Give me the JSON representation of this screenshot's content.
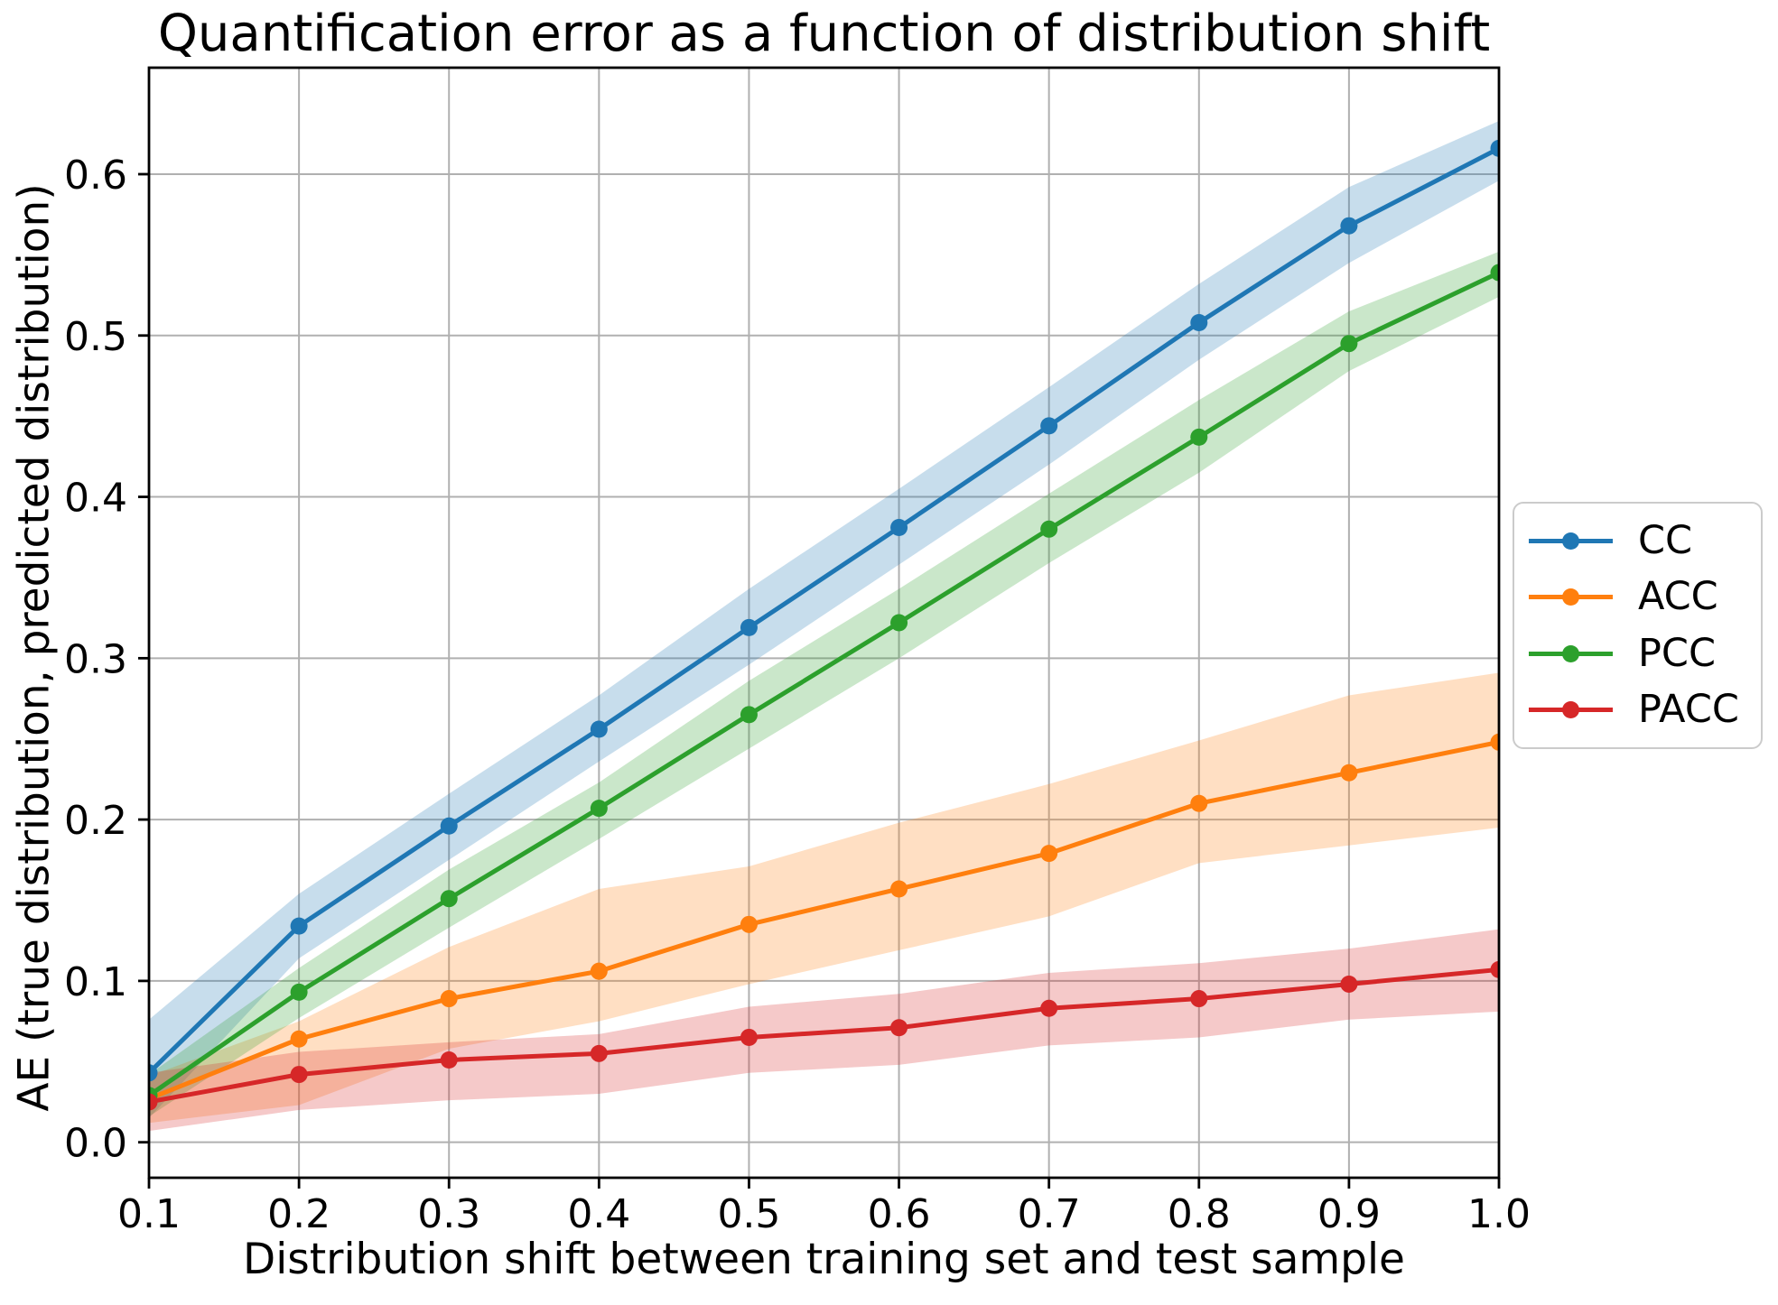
{
  "figure": {
    "background_color": "#ffffff",
    "grid_color": "#b0b0b0",
    "spine_color": "#000000",
    "text_color": "#000000",
    "legend_border_color": "#cbcbcb"
  },
  "chart_data": {
    "type": "line",
    "title": "Quantification error as a function of distribution shift",
    "xlabel": "Distribution shift between training set and test sample",
    "ylabel": "AE (true distribution, predicted distribution)",
    "x": [
      0.1,
      0.2,
      0.3,
      0.4,
      0.5,
      0.6,
      0.7,
      0.8,
      0.9,
      1.0
    ],
    "x_tick_labels": [
      "0.1",
      "0.2",
      "0.3",
      "0.4",
      "0.5",
      "0.6",
      "0.7",
      "0.8",
      "0.9",
      "1.0"
    ],
    "y_ticks": [
      0.0,
      0.1,
      0.2,
      0.3,
      0.4,
      0.5,
      0.6
    ],
    "y_tick_labels": [
      "0.0",
      "0.1",
      "0.2",
      "0.3",
      "0.4",
      "0.5",
      "0.6"
    ],
    "xlim": [
      0.1,
      1.0
    ],
    "ylim": [
      -0.022,
      0.666
    ],
    "grid": true,
    "legend_position": "outside-center-right",
    "band_opacity": 0.25,
    "series": [
      {
        "name": "CC",
        "color": "#1f77b4",
        "values": [
          0.043,
          0.134,
          0.196,
          0.256,
          0.319,
          0.381,
          0.444,
          0.508,
          0.568,
          0.616
        ],
        "band_lower": [
          0.015,
          0.114,
          0.175,
          0.236,
          0.296,
          0.358,
          0.42,
          0.485,
          0.545,
          0.596
        ],
        "band_upper": [
          0.076,
          0.154,
          0.216,
          0.277,
          0.343,
          0.405,
          0.468,
          0.532,
          0.592,
          0.633
        ]
      },
      {
        "name": "ACC",
        "color": "#ff7f0e",
        "values": [
          0.027,
          0.064,
          0.089,
          0.106,
          0.135,
          0.157,
          0.179,
          0.21,
          0.229,
          0.248
        ],
        "band_lower": [
          0.012,
          0.023,
          0.058,
          0.075,
          0.098,
          0.119,
          0.14,
          0.173,
          0.184,
          0.195
        ],
        "band_upper": [
          0.041,
          0.075,
          0.121,
          0.157,
          0.171,
          0.198,
          0.222,
          0.249,
          0.277,
          0.291
        ]
      },
      {
        "name": "PCC",
        "color": "#2ca02c",
        "values": [
          0.029,
          0.093,
          0.151,
          0.207,
          0.265,
          0.322,
          0.38,
          0.437,
          0.495,
          0.539
        ],
        "band_lower": [
          0.016,
          0.077,
          0.133,
          0.188,
          0.244,
          0.3,
          0.359,
          0.415,
          0.478,
          0.524
        ],
        "band_upper": [
          0.042,
          0.108,
          0.169,
          0.223,
          0.286,
          0.343,
          0.402,
          0.46,
          0.515,
          0.552
        ]
      },
      {
        "name": "PACC",
        "color": "#d62728",
        "values": [
          0.025,
          0.042,
          0.051,
          0.055,
          0.065,
          0.071,
          0.083,
          0.089,
          0.098,
          0.107
        ],
        "band_lower": [
          0.007,
          0.02,
          0.026,
          0.03,
          0.043,
          0.048,
          0.06,
          0.065,
          0.076,
          0.081
        ],
        "band_upper": [
          0.043,
          0.056,
          0.062,
          0.067,
          0.084,
          0.092,
          0.105,
          0.111,
          0.12,
          0.132
        ]
      }
    ]
  }
}
